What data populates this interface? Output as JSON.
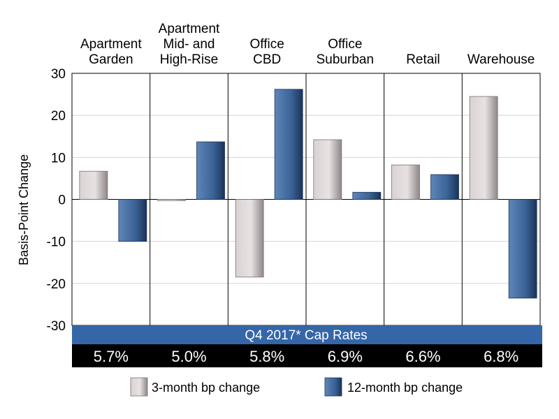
{
  "chart_data": {
    "type": "bar",
    "categories": [
      [
        "Apartment",
        "Garden"
      ],
      [
        "Apartment",
        "Mid- and",
        "High-Rise"
      ],
      [
        "Office",
        "CBD"
      ],
      [
        "Office",
        "Suburban"
      ],
      [
        "Retail"
      ],
      [
        "Warehouse"
      ]
    ],
    "series": [
      {
        "name": "3-month bp change",
        "values": [
          6.7,
          -0.3,
          -18.5,
          14.2,
          8.2,
          24.5
        ]
      },
      {
        "name": "12-month bp change",
        "values": [
          -10.0,
          13.7,
          26.2,
          1.7,
          5.9,
          -23.5
        ]
      }
    ],
    "ylabel": "Basis-Point Change",
    "ylim": [
      -30,
      30
    ],
    "yticks": [
      30,
      20,
      10,
      0,
      -10,
      -20,
      -30
    ],
    "grid": true,
    "legend": "bottom",
    "colors": {
      "three_month": "#c9c1c1",
      "twelve_month": "#3a6296"
    },
    "cap_rates": {
      "title": "Q4 2017* Cap Rates",
      "values": [
        "5.7%",
        "5.0%",
        "5.8%",
        "6.9%",
        "6.6%",
        "6.8%"
      ],
      "band_color": "#3466a8",
      "row_color": "#000000"
    }
  }
}
